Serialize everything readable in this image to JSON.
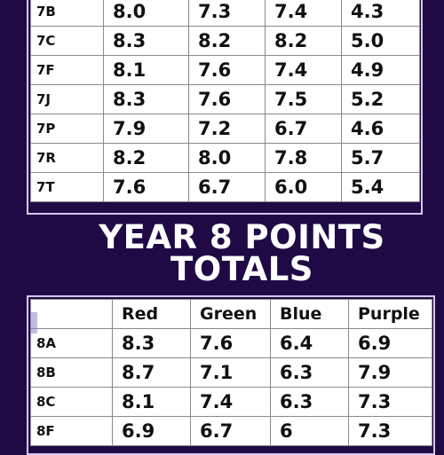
{
  "year7_table": {
    "rows": [
      {
        "cls": "7B",
        "red": "8.0",
        "green": "7.3",
        "blue": "7.4",
        "purple": "4.3"
      },
      {
        "cls": "7C",
        "red": "8.3",
        "green": "8.2",
        "blue": "8.2",
        "purple": "5.0"
      },
      {
        "cls": "7F",
        "red": "8.1",
        "green": "7.6",
        "blue": "7.4",
        "purple": "4.9"
      },
      {
        "cls": "7J",
        "red": "8.3",
        "green": "7.6",
        "blue": "7.5",
        "purple": "5.2"
      },
      {
        "cls": "7P",
        "red": "7.9",
        "green": "7.2",
        "blue": "6.7",
        "purple": "4.6"
      },
      {
        "cls": "7R",
        "red": "8.2",
        "green": "8.0",
        "blue": "7.8",
        "purple": "5.7"
      },
      {
        "cls": "7T",
        "red": "7.6",
        "green": "6.7",
        "blue": "6.0",
        "purple": "5.4"
      }
    ]
  },
  "heading": {
    "line1": "YEAR 8 POINTS",
    "line2": "TOTALS"
  },
  "year8_table": {
    "headers": {
      "cls": "",
      "red": "Red",
      "green": "Green",
      "blue": "Blue",
      "purple": "Purple"
    },
    "rows": [
      {
        "cls": "8A",
        "red": "8.3",
        "green": "7.6",
        "blue": "6.4",
        "purple": "6.9"
      },
      {
        "cls": "8B",
        "red": "8.7",
        "green": "7.1",
        "blue": "6.3",
        "purple": "7.9"
      },
      {
        "cls": "8C",
        "red": "8.1",
        "green": "7.4",
        "blue": "6.3",
        "purple": "7.3"
      },
      {
        "cls": "8F",
        "red": "6.9",
        "green": "6.7",
        "blue": "6",
        "purple": "7.3"
      }
    ]
  },
  "colors": {
    "background": "#1f0a45",
    "table_background": "#ffffff",
    "text": "#111111"
  }
}
